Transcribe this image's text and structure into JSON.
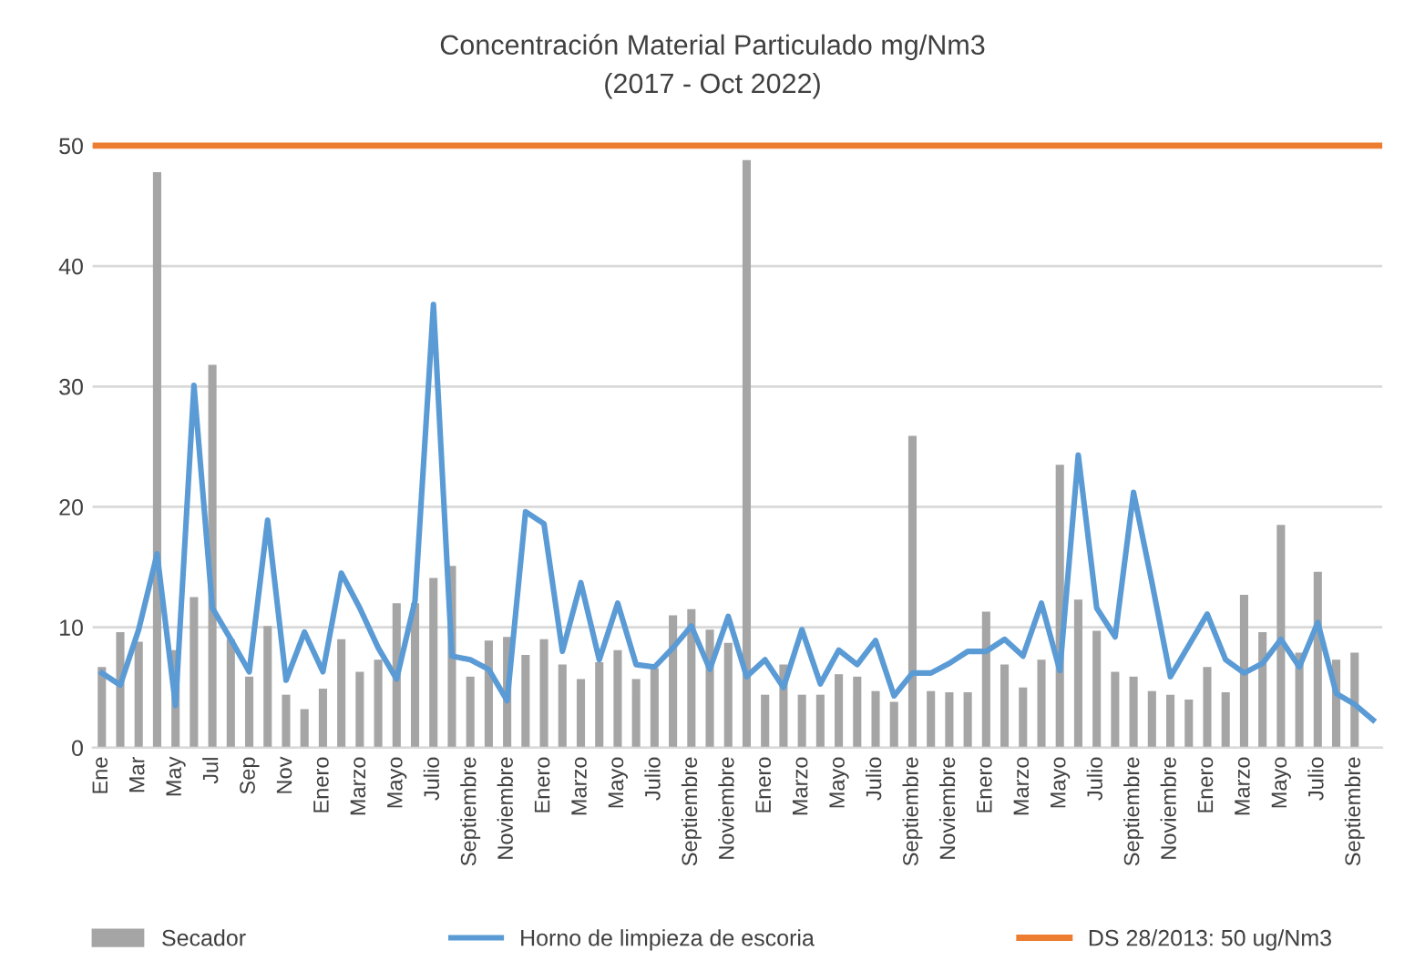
{
  "chart_data": {
    "type": "bar",
    "title": "Concentración Material Particulado mg/Nm3",
    "subtitle": "(2017 - Oct 2022)",
    "categories": [
      "Ene",
      null,
      "Mar",
      null,
      "May",
      null,
      "Jul",
      null,
      "Sep",
      null,
      "Nov",
      null,
      "Enero",
      null,
      "Marzo",
      null,
      "Mayo",
      null,
      "Julio",
      null,
      "Septiembre",
      null,
      "Noviembre",
      null,
      "Enero",
      null,
      "Marzo",
      null,
      "Mayo",
      null,
      "Julio",
      null,
      "Septiembre",
      null,
      "Noviembre",
      null,
      "Enero",
      null,
      "Marzo",
      null,
      "Mayo",
      null,
      "Julio",
      null,
      "Septiembre",
      null,
      "Noviembre",
      null,
      "Enero",
      null,
      "Marzo",
      null,
      "Mayo",
      null,
      "Julio",
      null,
      "Septiembre",
      null,
      "Noviembre",
      null,
      "Enero",
      null,
      "Marzo",
      null,
      "Mayo",
      null,
      "Julio",
      null,
      "Septiembre",
      null
    ],
    "series": [
      {
        "name": "Secador",
        "color": "#a5a5a5",
        "values": [
          6.7,
          9.6,
          8.8,
          47.8,
          8.1,
          12.5,
          31.8,
          9.0,
          5.9,
          10.1,
          4.4,
          3.2,
          4.9,
          9.0,
          6.3,
          7.3,
          12.0,
          12.0,
          14.1,
          15.1,
          5.9,
          8.9,
          9.2,
          7.7,
          9.0,
          6.9,
          5.7,
          7.1,
          8.1,
          5.7,
          6.6,
          11.0,
          11.5,
          9.8,
          8.7,
          48.8,
          4.4,
          6.9,
          4.4,
          4.4,
          6.1,
          5.9,
          4.7,
          3.8,
          25.9,
          4.7,
          4.6,
          4.6,
          11.3,
          6.9,
          5.0,
          7.3,
          23.5,
          12.3,
          9.7,
          6.3,
          5.9,
          4.7,
          4.4,
          4.0,
          6.7,
          4.6,
          12.7,
          9.6,
          18.5,
          7.9,
          14.6,
          7.3,
          7.9,
          null
        ]
      },
      {
        "name": "Horno de limpieza de escoria",
        "type": "line",
        "color": "#5b9bd5",
        "values": [
          6.2,
          5.2,
          9.8,
          16.1,
          3.5,
          30.1,
          11.6,
          9.0,
          6.3,
          18.9,
          5.6,
          9.6,
          6.3,
          14.5,
          11.6,
          8.3,
          5.7,
          12.2,
          36.8,
          7.6,
          7.3,
          6.5,
          3.9,
          19.6,
          18.6,
          8.0,
          13.7,
          7.3,
          12.0,
          6.9,
          6.7,
          8.3,
          10.1,
          6.5,
          10.9,
          5.9,
          7.3,
          5.0,
          9.8,
          5.3,
          8.1,
          6.9,
          8.9,
          4.3,
          6.2,
          6.2,
          7.0,
          8.0,
          8.0,
          9.0,
          7.6,
          12.0,
          6.4,
          24.3,
          11.6,
          9.2,
          21.2,
          13.7,
          5.9,
          8.5,
          11.1,
          7.3,
          6.2,
          7.0,
          9.0,
          6.7,
          10.4,
          4.5,
          3.6,
          2.3
        ]
      }
    ],
    "ref_lines": [
      {
        "axis": "y",
        "value": 50,
        "label": "DS 28/2013: 50 ug/Nm3",
        "color": "#ed7d31"
      }
    ],
    "ylim": [
      0,
      50
    ],
    "yticks": [
      0,
      10,
      20,
      30,
      40,
      50
    ],
    "grid": "y",
    "legend": "bottom"
  }
}
